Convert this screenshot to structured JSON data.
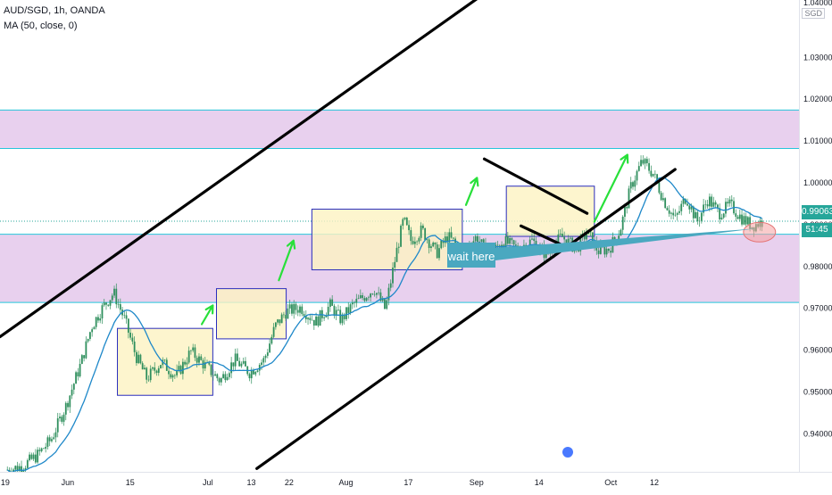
{
  "header": {
    "symbol": "AUD/SGD, 1h, OANDA",
    "indicator": "MA (50, close, 0)"
  },
  "axis": {
    "currency": "SGD",
    "top_partial": "1.04000"
  },
  "price_tags": {
    "last_price": "0.99063",
    "countdown": "51:45"
  },
  "annotation": {
    "text": "wait here"
  },
  "colors": {
    "zone_fill": "#e8d0ee",
    "zone_line": "#26c6da",
    "box_fill": "#fdf3c2",
    "box_stroke": "#2a2ebd",
    "arrow": "#28e03a",
    "trend": "#000000",
    "candle": "#2f8f5d",
    "ma": "#1e88c9",
    "callout": "#4aa8c0",
    "circle": "#f5a3a3"
  },
  "chart_data": {
    "type": "candlestick",
    "ylim": [
      0.9305,
      1.0435
    ],
    "y_ticks": [
      "1.03000",
      "1.02000",
      "1.01000",
      "1.00000",
      "0.99000",
      "0.98000",
      "0.97000",
      "0.96000",
      "0.95000",
      "0.94000"
    ],
    "x_ticks": [
      "19",
      "Jun",
      "15",
      "Jul",
      "13",
      "22",
      "Aug",
      "17",
      "Sep",
      "14",
      "Oct",
      "12"
    ],
    "resistance_zone": [
      1.008,
      1.0172
    ],
    "support_zone": [
      0.9712,
      0.9875
    ],
    "last_price": 0.99063,
    "price_path": [
      [
        0,
        0.9312
      ],
      [
        4,
        0.932
      ],
      [
        8,
        0.9345
      ],
      [
        12,
        0.9385
      ],
      [
        16,
        0.9465
      ],
      [
        20,
        0.9565
      ],
      [
        23,
        0.9655
      ],
      [
        26,
        0.97
      ],
      [
        29,
        0.9735
      ],
      [
        32,
        0.967
      ],
      [
        35,
        0.9585
      ],
      [
        38,
        0.953
      ],
      [
        42,
        0.957
      ],
      [
        46,
        0.9535
      ],
      [
        50,
        0.9595
      ],
      [
        54,
        0.956
      ],
      [
        58,
        0.9525
      ],
      [
        62,
        0.9575
      ],
      [
        66,
        0.9545
      ],
      [
        70,
        0.9575
      ],
      [
        73,
        0.9655
      ],
      [
        76,
        0.969
      ],
      [
        80,
        0.97
      ],
      [
        84,
        0.9665
      ],
      [
        88,
        0.9705
      ],
      [
        91,
        0.967
      ],
      [
        94,
        0.9705
      ],
      [
        97,
        0.9725
      ],
      [
        100,
        0.9745
      ],
      [
        103,
        0.9695
      ],
      [
        106,
        0.983
      ],
      [
        108,
        0.991
      ],
      [
        110,
        0.986
      ],
      [
        113,
        0.9885
      ],
      [
        117,
        0.983
      ],
      [
        120,
        0.987
      ],
      [
        124,
        0.9835
      ],
      [
        128,
        0.987
      ],
      [
        131,
        0.982
      ],
      [
        135,
        0.986
      ],
      [
        139,
        0.984
      ],
      [
        143,
        0.986
      ],
      [
        147,
        0.9825
      ],
      [
        151,
        0.987
      ],
      [
        155,
        0.984
      ],
      [
        158,
        0.988
      ],
      [
        161,
        0.9835
      ],
      [
        164,
        0.984
      ],
      [
        167,
        0.9885
      ],
      [
        170,
        0.999
      ],
      [
        173,
        1.005
      ],
      [
        176,
        1.002
      ],
      [
        179,
        0.9955
      ],
      [
        182,
        0.991
      ],
      [
        185,
        0.9965
      ],
      [
        188,
        0.9905
      ],
      [
        191,
        0.996
      ],
      [
        194,
        0.9925
      ],
      [
        197,
        0.9945
      ],
      [
        200,
        0.9915
      ],
      [
        203,
        0.9895
      ],
      [
        206,
        0.9906
      ]
    ],
    "boxes": [
      {
        "t0": 30,
        "t1": 56,
        "p0": 0.949,
        "p1": 0.965
      },
      {
        "t0": 57,
        "t1": 76,
        "p0": 0.9625,
        "p1": 0.9745
      },
      {
        "t0": 83,
        "t1": 124,
        "p0": 0.979,
        "p1": 0.9935
      },
      {
        "t0": 136,
        "t1": 160,
        "p0": 0.987,
        "p1": 0.999
      }
    ],
    "trendlines": [
      {
        "t0": -2,
        "p0": 0.963,
        "t1": 128,
        "p1": 1.0438
      },
      {
        "t0": 68,
        "p0": 0.9315,
        "t1": 182,
        "p1": 1.003
      },
      {
        "t0": 130,
        "p0": 1.0055,
        "t1": 158,
        "p1": 0.9925
      },
      {
        "t0": 140,
        "p0": 0.9895,
        "t1": 151,
        "p1": 0.985
      }
    ],
    "arrows": [
      {
        "t0": 53,
        "p0": 0.966,
        "t1": 56,
        "p1": 0.9705
      },
      {
        "t0": 74,
        "p0": 0.9765,
        "t1": 78,
        "p1": 0.986
      },
      {
        "t0": 125,
        "p0": 0.9945,
        "t1": 128,
        "p1": 1.001
      },
      {
        "t0": 160,
        "p0": 0.9905,
        "t1": 169,
        "p1": 1.0065
      }
    ]
  }
}
